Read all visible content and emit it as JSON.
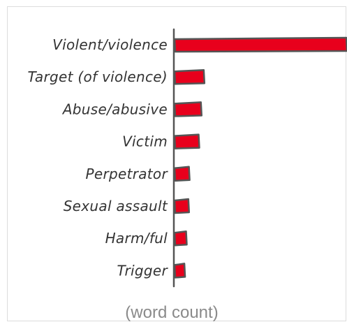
{
  "chart_data": {
    "type": "bar",
    "orientation": "horizontal",
    "categories": [
      "Violent/violence",
      "Target (of violence)",
      "Abuse/abusive",
      "Victim",
      "Perpetrator",
      "Sexual assault",
      "Harm/ful",
      "Trigger"
    ],
    "values": [
      300,
      50,
      45,
      41,
      24,
      23,
      19,
      16
    ],
    "xlabel": "(word count)",
    "bar_color": "#e8001c",
    "outline_color": "#555555"
  }
}
